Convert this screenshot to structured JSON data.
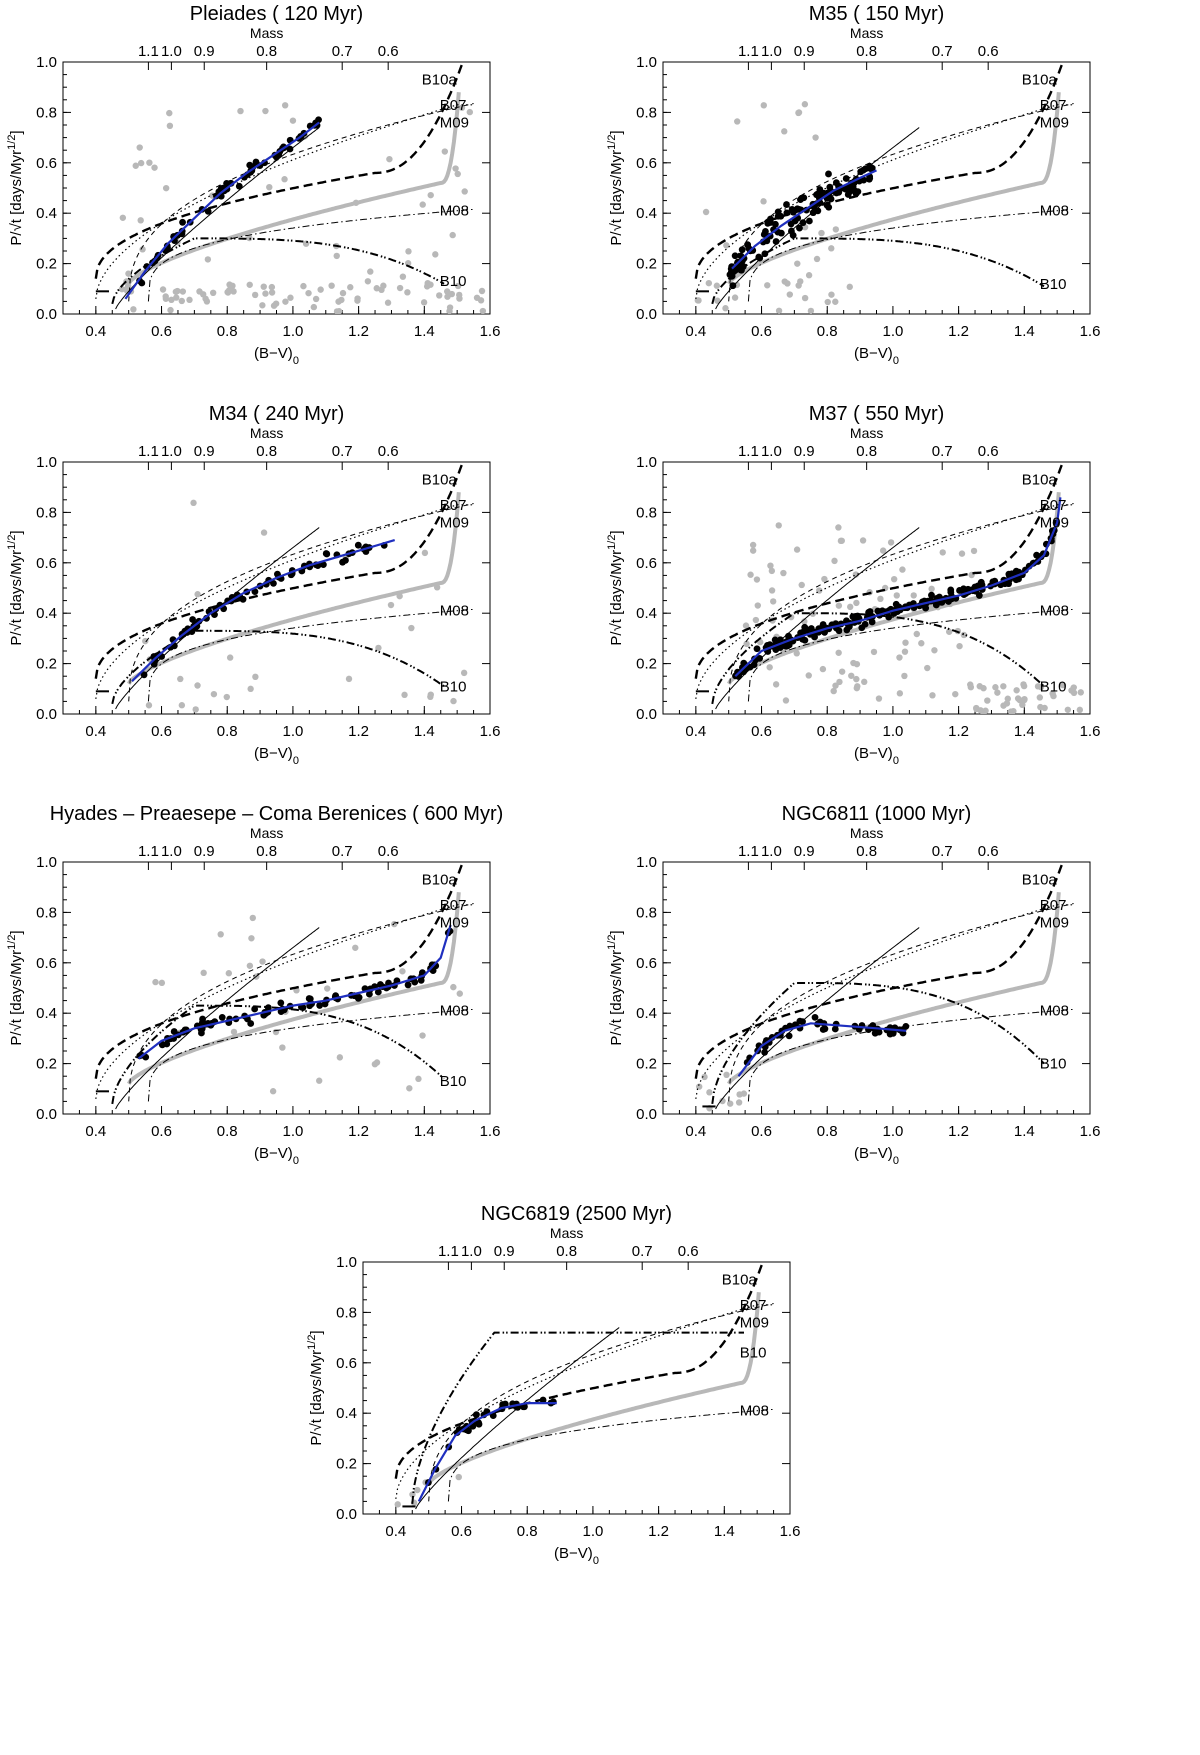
{
  "figure": {
    "mass_axis_label": "Mass",
    "x_axis_label": "(B−V)",
    "x_axis_subscript": "0",
    "y_axis_label": "P/√t  [days/Myr",
    "y_axis_sup": "1/2",
    "y_axis_close": "]"
  },
  "mass_ticks": [
    {
      "mass": "1.1",
      "bv": 0.56
    },
    {
      "mass": "1.0",
      "bv": 0.63
    },
    {
      "mass": "0.9",
      "bv": 0.73
    },
    {
      "mass": "0.8",
      "bv": 0.92
    },
    {
      "mass": "0.7",
      "bv": 1.15
    },
    {
      "mass": "0.6",
      "bv": 1.29
    }
  ],
  "colors": {
    "blue_fit": "#1f2fbf",
    "members": "#000000",
    "nonmembers": "#b8b8b8",
    "m08_gray": "#b4b4b4"
  },
  "chart_data": [
    {
      "type": "scatter",
      "title": "Pleiades ( 120 Myr)",
      "xlabel": "(B−V)0",
      "ylabel": "P/√t [days/Myr1/2]",
      "xlim": [
        0.3,
        1.6
      ],
      "ylim": [
        0,
        1.0
      ],
      "xticks": [
        "0.4",
        "0.6",
        "0.8",
        "1.0",
        "1.2",
        "1.4",
        "1.6"
      ],
      "yticks": [
        "0.0",
        "0.2",
        "0.4",
        "0.6",
        "0.8",
        "1.0"
      ],
      "curve_labels": [
        "B10a",
        "B07",
        "M09",
        "M08",
        "B10"
      ],
      "b10_label_y": 0.13,
      "b10_peak": 0.3,
      "b10_drop": 0.12,
      "members_n": 62,
      "members_seed": 11,
      "members_range": [
        0.5,
        1.08
      ],
      "members_scatter": 0.025,
      "nonmembers_n": 120,
      "nonmembers_seed": 23,
      "nonmembers_range": [
        0.45,
        1.58
      ],
      "nonmembers_mode": "low",
      "fit": [
        [
          0.49,
          0.06
        ],
        [
          0.55,
          0.17
        ],
        [
          0.62,
          0.28
        ],
        [
          0.7,
          0.38
        ],
        [
          0.78,
          0.48
        ],
        [
          0.86,
          0.56
        ],
        [
          0.94,
          0.63
        ],
        [
          1.02,
          0.7
        ],
        [
          1.08,
          0.76
        ]
      ],
      "bluebound": true
    },
    {
      "type": "scatter",
      "title": "M35 ( 150 Myr)",
      "xlabel": "(B−V)0",
      "ylabel": "P/√t [days/Myr1/2]",
      "xlim": [
        0.3,
        1.6
      ],
      "ylim": [
        0,
        1.0
      ],
      "xticks": [
        "0.4",
        "0.6",
        "0.8",
        "1.0",
        "1.2",
        "1.4",
        "1.6"
      ],
      "yticks": [
        "0.0",
        "0.2",
        "0.4",
        "0.6",
        "0.8",
        "1.0"
      ],
      "curve_labels": [
        "B10a",
        "B07",
        "M09",
        "M08",
        "B10"
      ],
      "b10_label_y": 0.12,
      "b10_peak": 0.3,
      "b10_drop": 0.11,
      "members_n": 120,
      "members_seed": 37,
      "members_range": [
        0.5,
        0.94
      ],
      "members_scatter": 0.06,
      "nonmembers_n": 40,
      "nonmembers_seed": 41,
      "nonmembers_range": [
        0.4,
        0.9
      ],
      "nonmembers_mode": "low",
      "fit": [
        [
          0.51,
          0.18
        ],
        [
          0.58,
          0.27
        ],
        [
          0.66,
          0.35
        ],
        [
          0.74,
          0.42
        ],
        [
          0.82,
          0.49
        ],
        [
          0.9,
          0.54
        ],
        [
          0.95,
          0.57
        ]
      ],
      "bluebound": true
    },
    {
      "type": "scatter",
      "title": "M34 ( 240 Myr)",
      "xlabel": "(B−V)0",
      "ylabel": "P/√t [days/Myr1/2]",
      "xlim": [
        0.3,
        1.6
      ],
      "ylim": [
        0,
        1.0
      ],
      "xticks": [
        "0.4",
        "0.6",
        "0.8",
        "1.0",
        "1.2",
        "1.4",
        "1.6"
      ],
      "yticks": [
        "0.0",
        "0.2",
        "0.4",
        "0.6",
        "0.8",
        "1.0"
      ],
      "curve_labels": [
        "B10a",
        "B07",
        "M09",
        "M08",
        "B10"
      ],
      "b10_label_y": 0.11,
      "b10_peak": 0.33,
      "b10_drop": 0.11,
      "members_n": 70,
      "members_seed": 53,
      "members_range": [
        0.51,
        1.28
      ],
      "members_scatter": 0.022,
      "nonmembers_n": 28,
      "nonmembers_seed": 59,
      "nonmembers_range": [
        0.55,
        1.55
      ],
      "nonmembers_mode": "low",
      "fit": [
        [
          0.51,
          0.13
        ],
        [
          0.58,
          0.22
        ],
        [
          0.66,
          0.31
        ],
        [
          0.75,
          0.4
        ],
        [
          0.85,
          0.48
        ],
        [
          0.95,
          0.54
        ],
        [
          1.05,
          0.59
        ],
        [
          1.18,
          0.64
        ],
        [
          1.31,
          0.69
        ]
      ],
      "bluebound": true
    },
    {
      "type": "scatter",
      "title": "M37 ( 550 Myr)",
      "xlabel": "(B−V)0",
      "ylabel": "P/√t [days/Myr1/2]",
      "xlim": [
        0.3,
        1.6
      ],
      "ylim": [
        0,
        1.0
      ],
      "xticks": [
        "0.4",
        "0.6",
        "0.8",
        "1.0",
        "1.2",
        "1.4",
        "1.6"
      ],
      "yticks": [
        "0.0",
        "0.2",
        "0.4",
        "0.6",
        "0.8",
        "1.0"
      ],
      "curve_labels": [
        "B10a",
        "B07",
        "M09",
        "M08",
        "B10"
      ],
      "b10_label_y": 0.11,
      "b10_peak": 0.4,
      "b10_drop": 0.11,
      "members_n": 210,
      "members_seed": 71,
      "members_range": [
        0.52,
        1.5
      ],
      "members_scatter": 0.025,
      "nonmembers_n": 130,
      "nonmembers_seed": 79,
      "nonmembers_range": [
        0.55,
        1.58
      ],
      "nonmembers_mode": "m37",
      "fit": [
        [
          0.52,
          0.15
        ],
        [
          0.6,
          0.25
        ],
        [
          0.7,
          0.3
        ],
        [
          0.8,
          0.34
        ],
        [
          0.9,
          0.37
        ],
        [
          1.0,
          0.41
        ],
        [
          1.1,
          0.44
        ],
        [
          1.2,
          0.47
        ],
        [
          1.3,
          0.51
        ],
        [
          1.4,
          0.56
        ],
        [
          1.46,
          0.63
        ],
        [
          1.5,
          0.76
        ],
        [
          1.51,
          0.86
        ]
      ],
      "bluebound": true
    },
    {
      "type": "scatter",
      "title": "Hyades – Preaesepe – Coma Berenices ( 600 Myr)",
      "xlabel": "(B−V)0",
      "ylabel": "P/√t [days/Myr1/2]",
      "xlim": [
        0.3,
        1.6
      ],
      "ylim": [
        0,
        1.0
      ],
      "xticks": [
        "0.4",
        "0.6",
        "0.8",
        "1.0",
        "1.2",
        "1.4",
        "1.6"
      ],
      "yticks": [
        "0.0",
        "0.2",
        "0.4",
        "0.6",
        "0.8",
        "1.0"
      ],
      "curve_labels": [
        "B10a",
        "B07",
        "M09",
        "M08",
        "B10"
      ],
      "b10_label_y": 0.13,
      "b10_peak": 0.43,
      "b10_drop": 0.14,
      "members_n": 95,
      "members_seed": 83,
      "members_range": [
        0.53,
        1.48
      ],
      "members_scatter": 0.022,
      "nonmembers_n": 30,
      "nonmembers_seed": 89,
      "nonmembers_range": [
        0.55,
        1.55
      ],
      "nonmembers_mode": "wide",
      "fit": [
        [
          0.53,
          0.22
        ],
        [
          0.6,
          0.29
        ],
        [
          0.7,
          0.34
        ],
        [
          0.8,
          0.37
        ],
        [
          0.9,
          0.4
        ],
        [
          1.0,
          0.43
        ],
        [
          1.1,
          0.45
        ],
        [
          1.2,
          0.48
        ],
        [
          1.3,
          0.51
        ],
        [
          1.4,
          0.55
        ],
        [
          1.45,
          0.62
        ],
        [
          1.48,
          0.75
        ]
      ],
      "bluebound": true
    },
    {
      "type": "scatter",
      "title": "NGC6811 (1000 Myr)",
      "xlabel": "(B−V)0",
      "ylabel": "P/√t [days/Myr1/2]",
      "xlim": [
        0.3,
        1.6
      ],
      "ylim": [
        0,
        1.0
      ],
      "xticks": [
        "0.4",
        "0.6",
        "0.8",
        "1.0",
        "1.2",
        "1.4",
        "1.6"
      ],
      "yticks": [
        "0.0",
        "0.2",
        "0.4",
        "0.6",
        "0.8",
        "1.0"
      ],
      "curve_labels": [
        "B10a",
        "B07",
        "M09",
        "M08",
        "B10"
      ],
      "b10_label_y": 0.2,
      "b10_peak": 0.52,
      "b10_drop": 0.2,
      "members_n": 50,
      "members_seed": 97,
      "members_range": [
        0.55,
        1.04
      ],
      "members_scatter": 0.02,
      "nonmembers_n": 10,
      "nonmembers_seed": 101,
      "nonmembers_range": [
        0.4,
        0.55
      ],
      "nonmembers_mode": "blue",
      "fit": [
        [
          0.53,
          0.15
        ],
        [
          0.6,
          0.27
        ],
        [
          0.67,
          0.33
        ],
        [
          0.75,
          0.36
        ],
        [
          0.85,
          0.35
        ],
        [
          0.95,
          0.34
        ],
        [
          1.04,
          0.33
        ]
      ],
      "bluebound": false
    },
    {
      "type": "scatter",
      "title": "NGC6819 (2500 Myr)",
      "xlabel": "(B−V)0",
      "ylabel": "P/√t [days/Myr1/2]",
      "xlim": [
        0.3,
        1.6
      ],
      "ylim": [
        0,
        1.0
      ],
      "xticks": [
        "0.4",
        "0.6",
        "0.8",
        "1.0",
        "1.2",
        "1.4",
        "1.6"
      ],
      "yticks": [
        "0.0",
        "0.2",
        "0.4",
        "0.6",
        "0.8",
        "1.0"
      ],
      "curve_labels": [
        "B10a",
        "B07",
        "M09",
        "B10",
        "M08"
      ],
      "b10_label_y": 0.64,
      "b10_peak": 0.72,
      "b10_drop": 0.72,
      "members_n": 30,
      "members_seed": 107,
      "members_range": [
        0.47,
        0.89
      ],
      "members_scatter": 0.018,
      "nonmembers_n": 6,
      "nonmembers_seed": 109,
      "nonmembers_range": [
        0.4,
        0.6
      ],
      "nonmembers_mode": "blue",
      "fit": [
        [
          0.47,
          0.05
        ],
        [
          0.52,
          0.18
        ],
        [
          0.58,
          0.31
        ],
        [
          0.64,
          0.37
        ],
        [
          0.72,
          0.42
        ],
        [
          0.8,
          0.44
        ],
        [
          0.89,
          0.44
        ]
      ],
      "bluebound": false
    }
  ]
}
